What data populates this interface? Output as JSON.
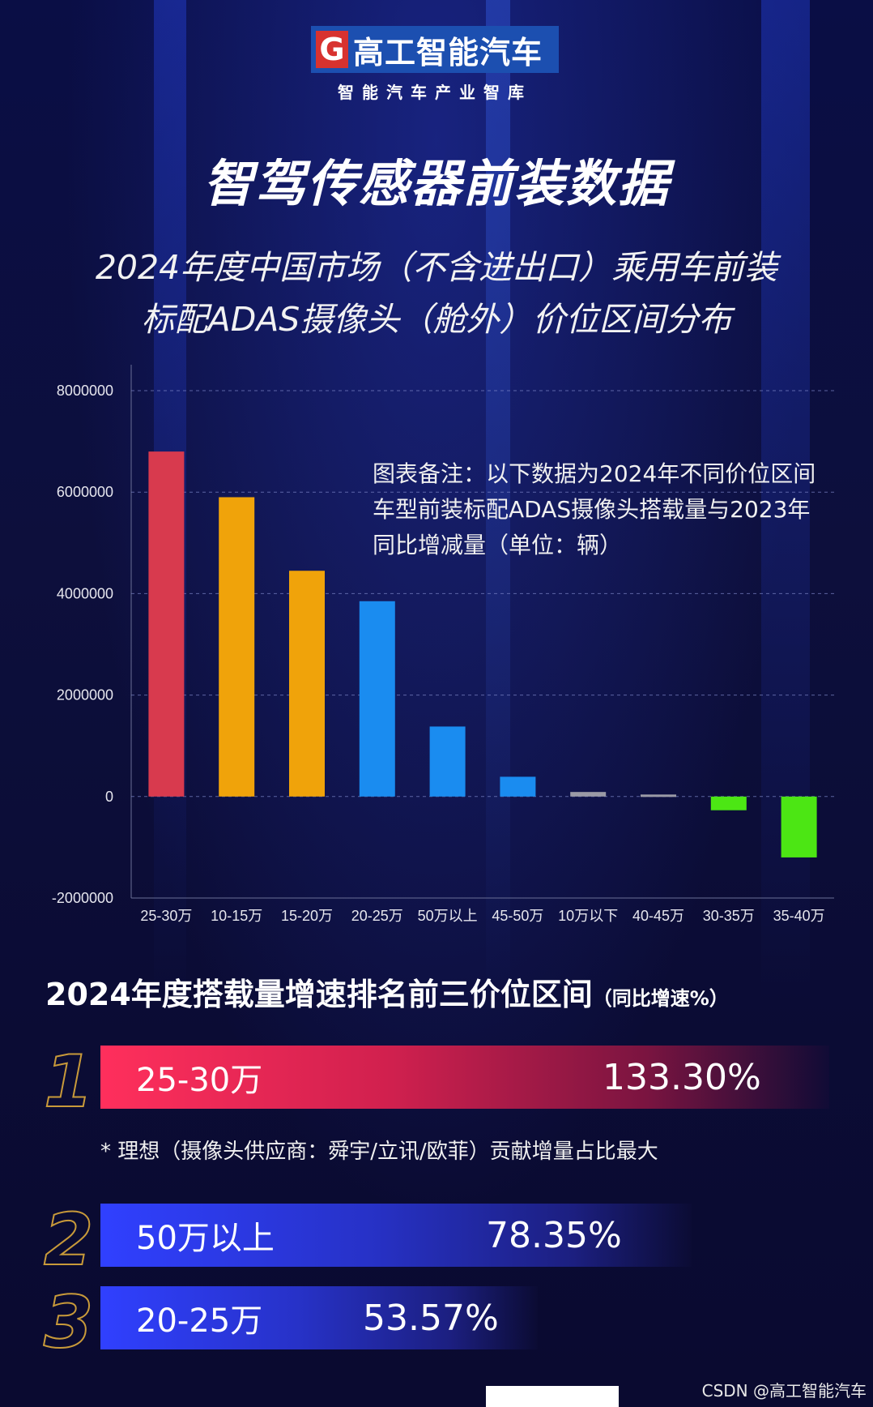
{
  "header": {
    "logo_mark": "G",
    "logo_text": "高工智能汽车",
    "slogan": "智能汽车产业智库"
  },
  "title": "智驾传感器前装数据",
  "subtitle_line1": "2024年度中国市场（不含进出口）乘用车前装",
  "subtitle_line2": "标配ADAS摄像头（舱外）价位区间分布",
  "chart_note": "图表备注：以下数据为2024年不同价位区间车型前装标配ADAS摄像头搭载量与2023年同比增减量（单位：辆）",
  "chart_data": {
    "type": "bar",
    "categories": [
      "25-30万",
      "10-15万",
      "15-20万",
      "20-25万",
      "50万以上",
      "45-50万",
      "10万以下",
      "40-45万",
      "30-35万",
      "35-40万"
    ],
    "values": [
      6800000,
      5900000,
      4450000,
      3850000,
      1380000,
      390000,
      90000,
      40000,
      -270000,
      -1200000
    ],
    "colors": [
      "#d83a4e",
      "#f0a30a",
      "#f0a30a",
      "#1a8cf0",
      "#1a8cf0",
      "#1a8cf0",
      "#9a9aa6",
      "#9a9aa6",
      "#4ce614",
      "#4ce614"
    ],
    "yticks": [
      "8000000",
      "6000000",
      "4000000",
      "2000000",
      "0",
      "-2000000"
    ],
    "ylim": [
      -2000000,
      8000000
    ],
    "grid": true
  },
  "ranking": {
    "title": "2024年度搭载量增速排名前三价位区间",
    "title_note": "（同比增速%）",
    "items": [
      {
        "rank": "1",
        "label": "25-30万",
        "value": "133.30%"
      },
      {
        "rank": "2",
        "label": "50万以上",
        "value": "78.35%"
      },
      {
        "rank": "3",
        "label": "20-25万",
        "value": "53.57%"
      }
    ],
    "footnote": "* 理想（摄像头供应商：舜宇/立讯/欧菲）贡献增量占比最大"
  },
  "watermark": "CSDN @高工智能汽车"
}
